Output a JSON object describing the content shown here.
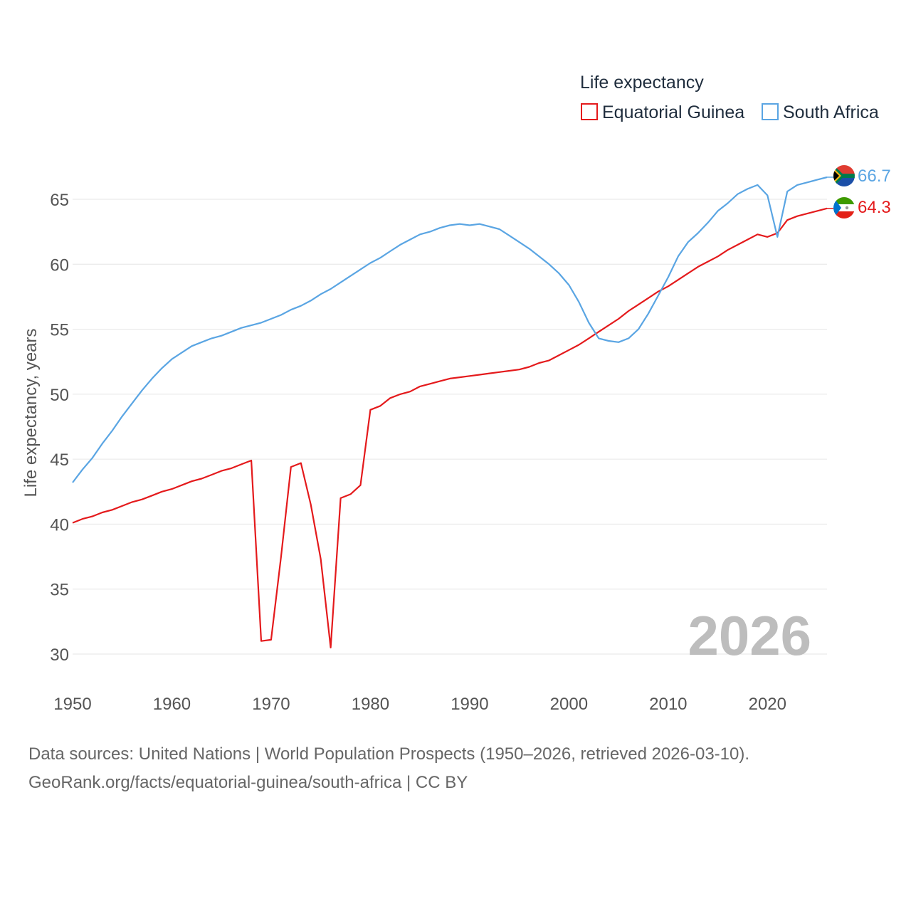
{
  "legend": {
    "title": "Life expectancy",
    "items": [
      {
        "label": "Equatorial Guinea",
        "color": "#e41a1c"
      },
      {
        "label": "South Africa",
        "color": "#5aa5e3"
      }
    ]
  },
  "watermark_year": "2026",
  "source": {
    "line1": "Data sources: United Nations | World Population Prospects (1950–2026, retrieved 2026-03-10).",
    "line2": "GeoRank.org/facts/equatorial-guinea/south-africa | CC BY"
  },
  "chart_data": {
    "type": "line",
    "title": "Life expectancy",
    "xlabel": "",
    "ylabel": "Life expectancy, years",
    "xlim": [
      1950,
      2026
    ],
    "ylim": [
      28,
      68
    ],
    "xticks": [
      1950,
      1960,
      1970,
      1980,
      1990,
      2000,
      2010,
      2020
    ],
    "yticks": [
      30,
      35,
      40,
      45,
      50,
      55,
      60,
      65
    ],
    "grid": true,
    "legend_position": "top-right",
    "series": [
      {
        "name": "Equatorial Guinea",
        "color": "#e41a1c",
        "end_label": "64.3",
        "flag": "equatorial-guinea-flag-icon",
        "points": [
          [
            1950,
            40.1
          ],
          [
            1951,
            40.4
          ],
          [
            1952,
            40.6
          ],
          [
            1953,
            40.9
          ],
          [
            1954,
            41.1
          ],
          [
            1955,
            41.4
          ],
          [
            1956,
            41.7
          ],
          [
            1957,
            41.9
          ],
          [
            1958,
            42.2
          ],
          [
            1959,
            42.5
          ],
          [
            1960,
            42.7
          ],
          [
            1961,
            43.0
          ],
          [
            1962,
            43.3
          ],
          [
            1963,
            43.5
          ],
          [
            1964,
            43.8
          ],
          [
            1965,
            44.1
          ],
          [
            1966,
            44.3
          ],
          [
            1967,
            44.6
          ],
          [
            1968,
            44.9
          ],
          [
            1969,
            31.0
          ],
          [
            1970,
            31.1
          ],
          [
            1971,
            37.5
          ],
          [
            1972,
            44.4
          ],
          [
            1973,
            44.7
          ],
          [
            1974,
            41.5
          ],
          [
            1975,
            37.3
          ],
          [
            1976,
            30.5
          ],
          [
            1977,
            42.0
          ],
          [
            1978,
            42.3
          ],
          [
            1979,
            43.0
          ],
          [
            1980,
            48.8
          ],
          [
            1981,
            49.1
          ],
          [
            1982,
            49.7
          ],
          [
            1983,
            50.0
          ],
          [
            1984,
            50.2
          ],
          [
            1985,
            50.6
          ],
          [
            1986,
            50.8
          ],
          [
            1987,
            51.0
          ],
          [
            1988,
            51.2
          ],
          [
            1989,
            51.3
          ],
          [
            1990,
            51.4
          ],
          [
            1991,
            51.5
          ],
          [
            1992,
            51.6
          ],
          [
            1993,
            51.7
          ],
          [
            1994,
            51.8
          ],
          [
            1995,
            51.9
          ],
          [
            1996,
            52.1
          ],
          [
            1997,
            52.4
          ],
          [
            1998,
            52.6
          ],
          [
            1999,
            53.0
          ],
          [
            2000,
            53.4
          ],
          [
            2001,
            53.8
          ],
          [
            2002,
            54.3
          ],
          [
            2003,
            54.8
          ],
          [
            2004,
            55.3
          ],
          [
            2005,
            55.8
          ],
          [
            2006,
            56.4
          ],
          [
            2007,
            56.9
          ],
          [
            2008,
            57.4
          ],
          [
            2009,
            57.9
          ],
          [
            2010,
            58.3
          ],
          [
            2011,
            58.8
          ],
          [
            2012,
            59.3
          ],
          [
            2013,
            59.8
          ],
          [
            2014,
            60.2
          ],
          [
            2015,
            60.6
          ],
          [
            2016,
            61.1
          ],
          [
            2017,
            61.5
          ],
          [
            2018,
            61.9
          ],
          [
            2019,
            62.3
          ],
          [
            2020,
            62.1
          ],
          [
            2021,
            62.4
          ],
          [
            2022,
            63.4
          ],
          [
            2023,
            63.7
          ],
          [
            2024,
            63.9
          ],
          [
            2025,
            64.1
          ],
          [
            2026,
            64.3
          ]
        ]
      },
      {
        "name": "South Africa",
        "color": "#5aa5e3",
        "end_label": "66.7",
        "flag": "south-africa-flag-icon",
        "points": [
          [
            1950,
            43.2
          ],
          [
            1951,
            44.2
          ],
          [
            1952,
            45.1
          ],
          [
            1953,
            46.2
          ],
          [
            1954,
            47.2
          ],
          [
            1955,
            48.3
          ],
          [
            1956,
            49.3
          ],
          [
            1957,
            50.3
          ],
          [
            1958,
            51.2
          ],
          [
            1959,
            52.0
          ],
          [
            1960,
            52.7
          ],
          [
            1961,
            53.2
          ],
          [
            1962,
            53.7
          ],
          [
            1963,
            54.0
          ],
          [
            1964,
            54.3
          ],
          [
            1965,
            54.5
          ],
          [
            1966,
            54.8
          ],
          [
            1967,
            55.1
          ],
          [
            1968,
            55.3
          ],
          [
            1969,
            55.5
          ],
          [
            1970,
            55.8
          ],
          [
            1971,
            56.1
          ],
          [
            1972,
            56.5
          ],
          [
            1973,
            56.8
          ],
          [
            1974,
            57.2
          ],
          [
            1975,
            57.7
          ],
          [
            1976,
            58.1
          ],
          [
            1977,
            58.6
          ],
          [
            1978,
            59.1
          ],
          [
            1979,
            59.6
          ],
          [
            1980,
            60.1
          ],
          [
            1981,
            60.5
          ],
          [
            1982,
            61.0
          ],
          [
            1983,
            61.5
          ],
          [
            1984,
            61.9
          ],
          [
            1985,
            62.3
          ],
          [
            1986,
            62.5
          ],
          [
            1987,
            62.8
          ],
          [
            1988,
            63.0
          ],
          [
            1989,
            63.1
          ],
          [
            1990,
            63.0
          ],
          [
            1991,
            63.1
          ],
          [
            1992,
            62.9
          ],
          [
            1993,
            62.7
          ],
          [
            1994,
            62.2
          ],
          [
            1995,
            61.7
          ],
          [
            1996,
            61.2
          ],
          [
            1997,
            60.6
          ],
          [
            1998,
            60.0
          ],
          [
            1999,
            59.3
          ],
          [
            2000,
            58.4
          ],
          [
            2001,
            57.1
          ],
          [
            2002,
            55.5
          ],
          [
            2003,
            54.3
          ],
          [
            2004,
            54.1
          ],
          [
            2005,
            54.0
          ],
          [
            2006,
            54.3
          ],
          [
            2007,
            55.0
          ],
          [
            2008,
            56.2
          ],
          [
            2009,
            57.6
          ],
          [
            2010,
            59.0
          ],
          [
            2011,
            60.6
          ],
          [
            2012,
            61.7
          ],
          [
            2013,
            62.4
          ],
          [
            2014,
            63.2
          ],
          [
            2015,
            64.1
          ],
          [
            2016,
            64.7
          ],
          [
            2017,
            65.4
          ],
          [
            2018,
            65.8
          ],
          [
            2019,
            66.1
          ],
          [
            2020,
            65.3
          ],
          [
            2021,
            62.1
          ],
          [
            2022,
            65.6
          ],
          [
            2023,
            66.1
          ],
          [
            2024,
            66.3
          ],
          [
            2025,
            66.5
          ],
          [
            2026,
            66.7
          ]
        ]
      }
    ]
  }
}
